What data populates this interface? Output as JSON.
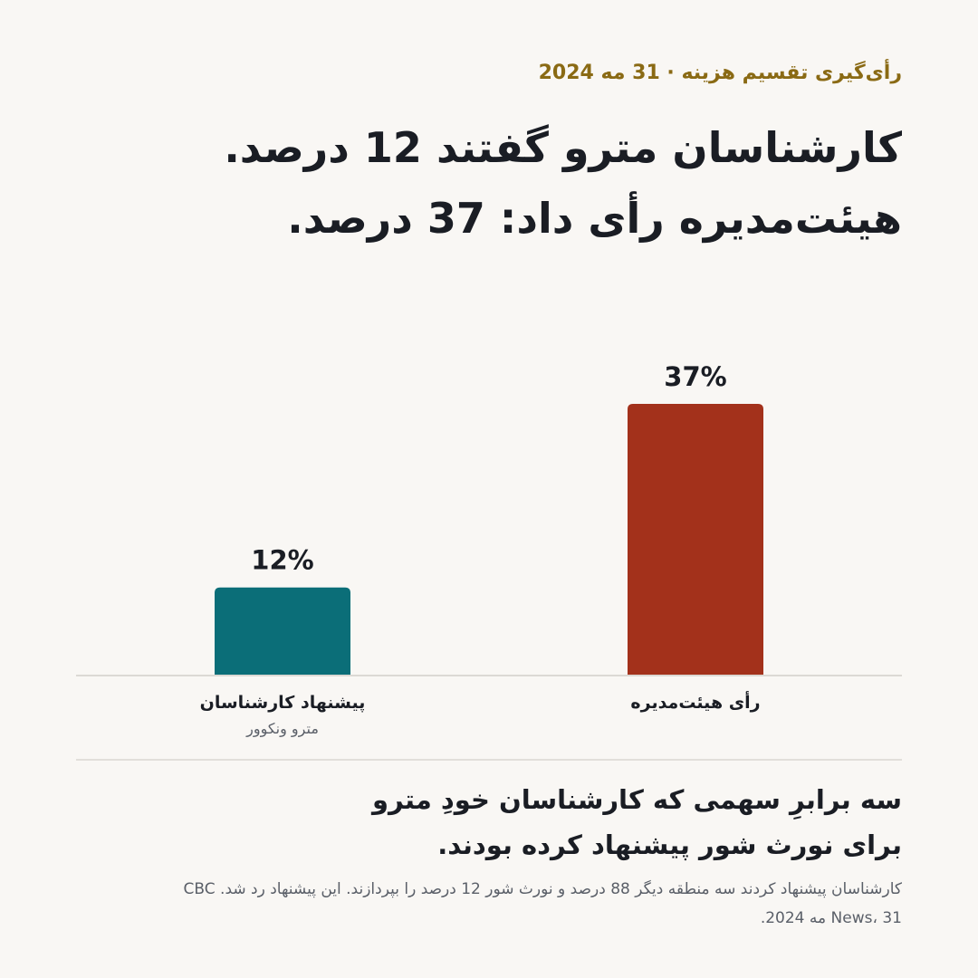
{
  "eyebrow": "رأی‌گیری تقسیم هزینه · 31 مه 2024",
  "headline": {
    "line1": "کارشناسان مترو گفتند 12 درصد.",
    "line2": "هیئت‌مدیره رأی داد: 37 درصد."
  },
  "chart_data": {
    "type": "bar",
    "title": "",
    "xlabel": "",
    "ylabel": "",
    "ylim": [
      0,
      37
    ],
    "grid": false,
    "categories": [
      "پیشنهاد کارشناسان",
      "رأی هیئت‌مدیره"
    ],
    "category_sublabels": [
      "مترو ونکوور",
      ""
    ],
    "values": [
      12,
      37
    ],
    "value_labels": [
      "12%",
      "37%"
    ],
    "colors": [
      "#0b6e78",
      "#a3311b"
    ],
    "baseline_color": "#dcd9d4"
  },
  "takeaway": {
    "line1": "سه برابرِ سهمی که کارشناسان خودِ مترو",
    "line2": "برای نورث شور پیشنهاد کرده بودند."
  },
  "source": {
    "line1": "کارشناسان پیشنهاد کردند سه منطقه دیگر 88 درصد و نورث شور 12 درصد را بپردازند. این پیشنهاد رد شد. CBC",
    "line2": "News، 31 مه 2024."
  }
}
